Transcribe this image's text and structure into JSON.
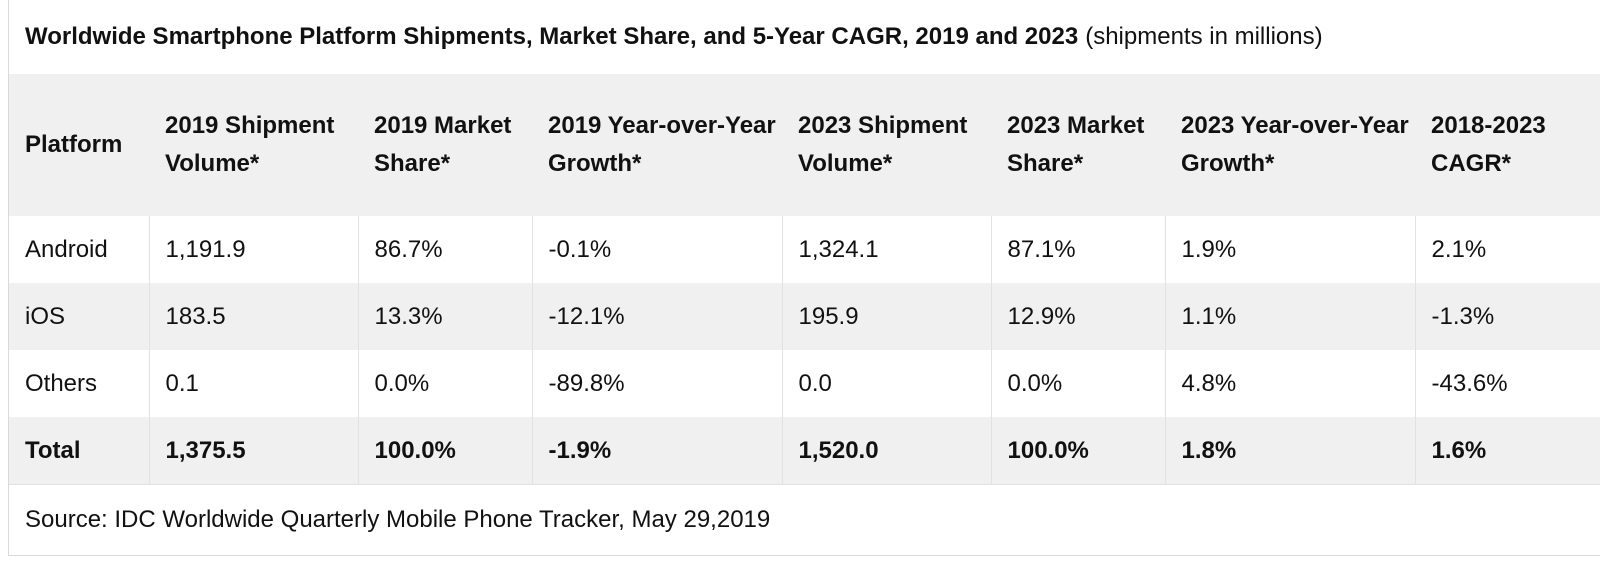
{
  "title": {
    "main": "Worldwide Smartphone Platform Shipments, Market Share, and 5-Year CAGR, 2019 and 2023",
    "sub": "(shipments in millions)"
  },
  "table": {
    "headers": [
      "Platform",
      "2019 Shipment Volume*",
      "2019 Market Share*",
      "2019 Year-over-Year Growth*",
      "2023 Shipment Volume*",
      "2023 Market Share*",
      "2023 Year-over-Year Growth*",
      "2018-2023 CAGR*"
    ],
    "rows": [
      [
        "Android",
        "1,191.9",
        "86.7%",
        "-0.1%",
        "1,324.1",
        "87.1%",
        "1.9%",
        "2.1%"
      ],
      [
        "iOS",
        "183.5",
        "13.3%",
        "-12.1%",
        "195.9",
        "12.9%",
        "1.1%",
        "-1.3%"
      ],
      [
        "Others",
        "0.1",
        "0.0%",
        "-89.8%",
        "0.0",
        "0.0%",
        "4.8%",
        "-43.6%"
      ]
    ],
    "total": [
      "Total",
      "1,375.5",
      "100.0%",
      "-1.9%",
      "1,520.0",
      "100.0%",
      "1.8%",
      "1.6%"
    ]
  },
  "source": "Source: IDC Worldwide Quarterly Mobile Phone Tracker, May 29,2019"
}
